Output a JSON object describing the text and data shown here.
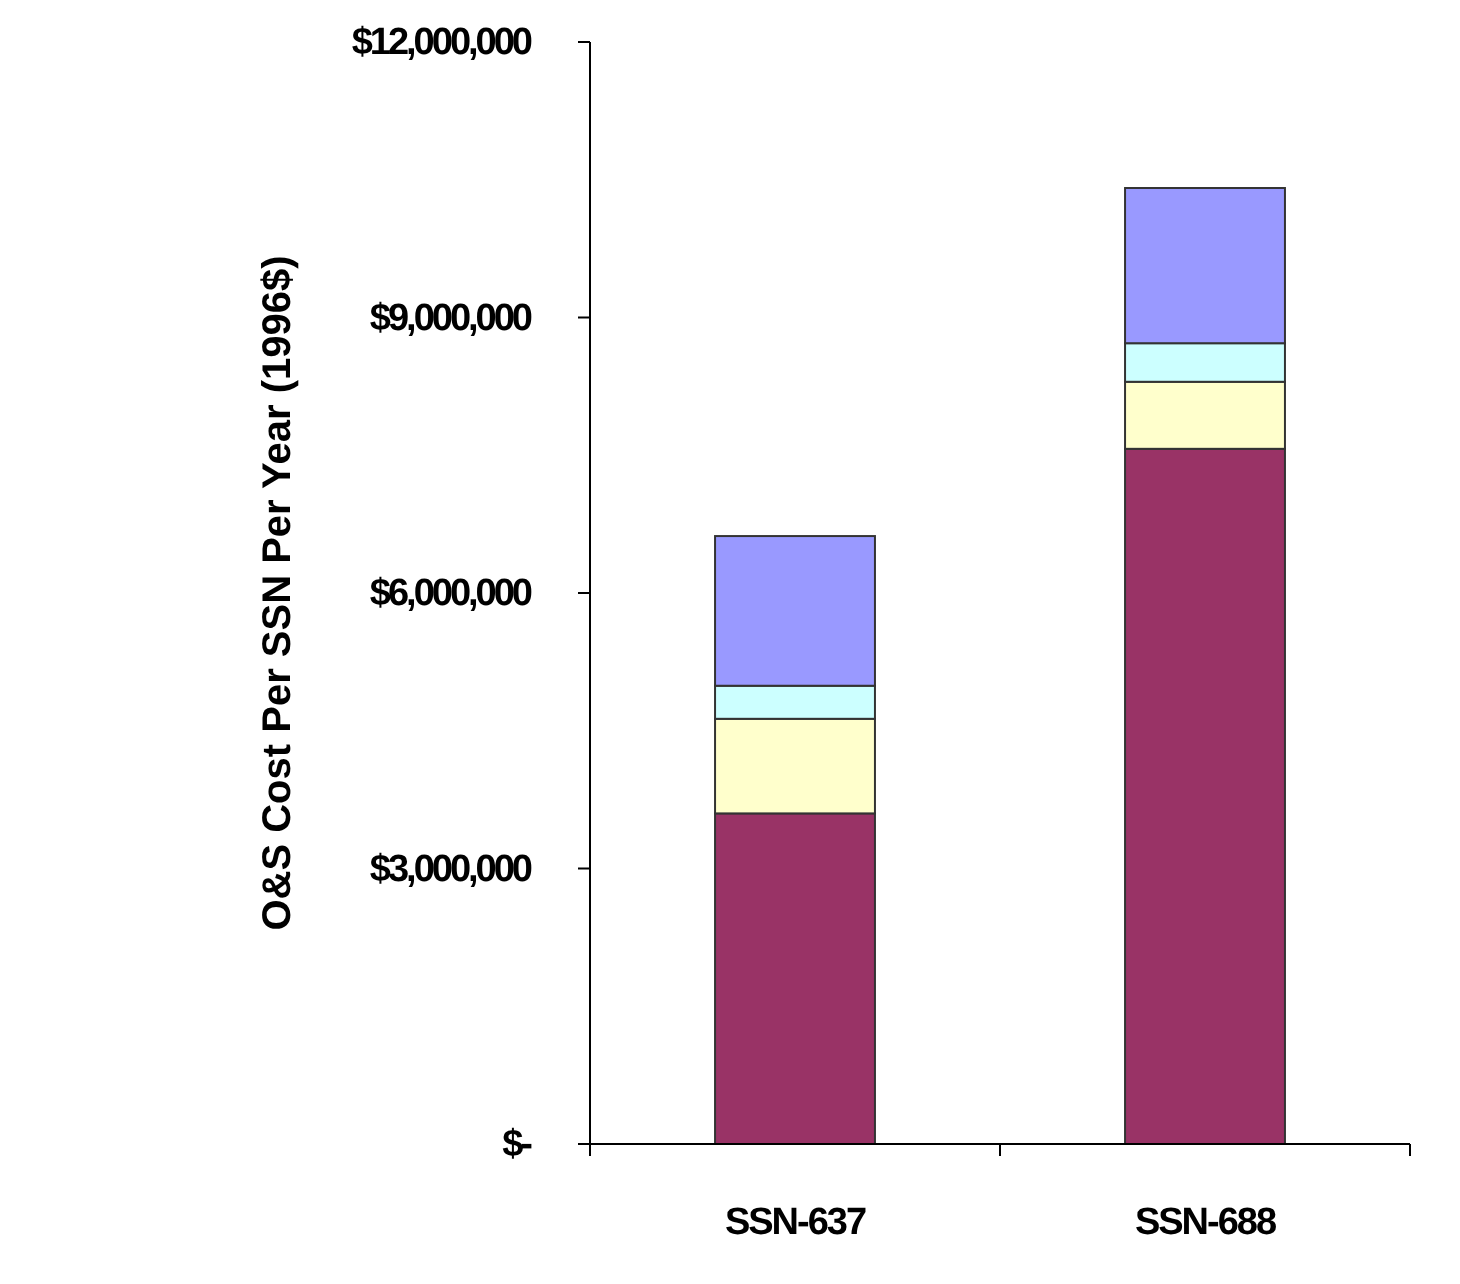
{
  "chart_data": {
    "type": "bar",
    "stacked": true,
    "ylabel": "O&S Cost Per SSN Per Year (1996$)",
    "categories": [
      "SSN-637",
      "SSN-688"
    ],
    "series": [
      {
        "color": "#993366",
        "values": [
          3600000,
          7570000
        ]
      },
      {
        "color": "#ffffcc",
        "values": [
          1030000,
          730000
        ]
      },
      {
        "color": "#ccffff",
        "values": [
          360000,
          420000
        ]
      },
      {
        "color": "#9999ff",
        "values": [
          1630000,
          1690000
        ]
      }
    ],
    "ylim": [
      0,
      12000000
    ],
    "yticks": [
      {
        "value": 0,
        "label": "$-"
      },
      {
        "value": 3000000,
        "label": "$3,000,000"
      },
      {
        "value": 6000000,
        "label": "$6,000,000"
      },
      {
        "value": 9000000,
        "label": "$9,000,000"
      },
      {
        "value": 12000000,
        "label": "$12,000,000"
      }
    ],
    "grid": false
  }
}
